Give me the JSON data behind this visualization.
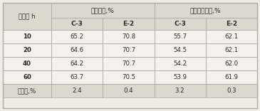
{
  "col_headers_row1_left": "苯转化率,%",
  "col_headers_row1_right": "环己烯选择性,%",
  "col_header_time": "时间， h",
  "col_headers_row2": [
    "C-3",
    "E-2",
    "C-3",
    "E-2"
  ],
  "rows": [
    [
      "10",
      "65.2",
      "70.8",
      "55.7",
      "62.1"
    ],
    [
      "20",
      "64.6",
      "70.7",
      "54.5",
      "62.1"
    ],
    [
      "40",
      "64.2",
      "70.7",
      "54.2",
      "62.0"
    ],
    [
      "60",
      "63.7",
      "70.5",
      "53.9",
      "61.9"
    ],
    [
      "降低率,%",
      "2.4",
      "0.4",
      "3.2",
      "0.3"
    ]
  ],
  "bg_color": "#f0ece4",
  "header_bg": "#ddd8ce",
  "cell_bg": "#f5f2ec",
  "last_row_bg": "#ddd8ce",
  "border_color": "#aaaaaa",
  "text_color": "#2a2a2a",
  "figsize": [
    3.65,
    1.56
  ],
  "dpi": 100
}
